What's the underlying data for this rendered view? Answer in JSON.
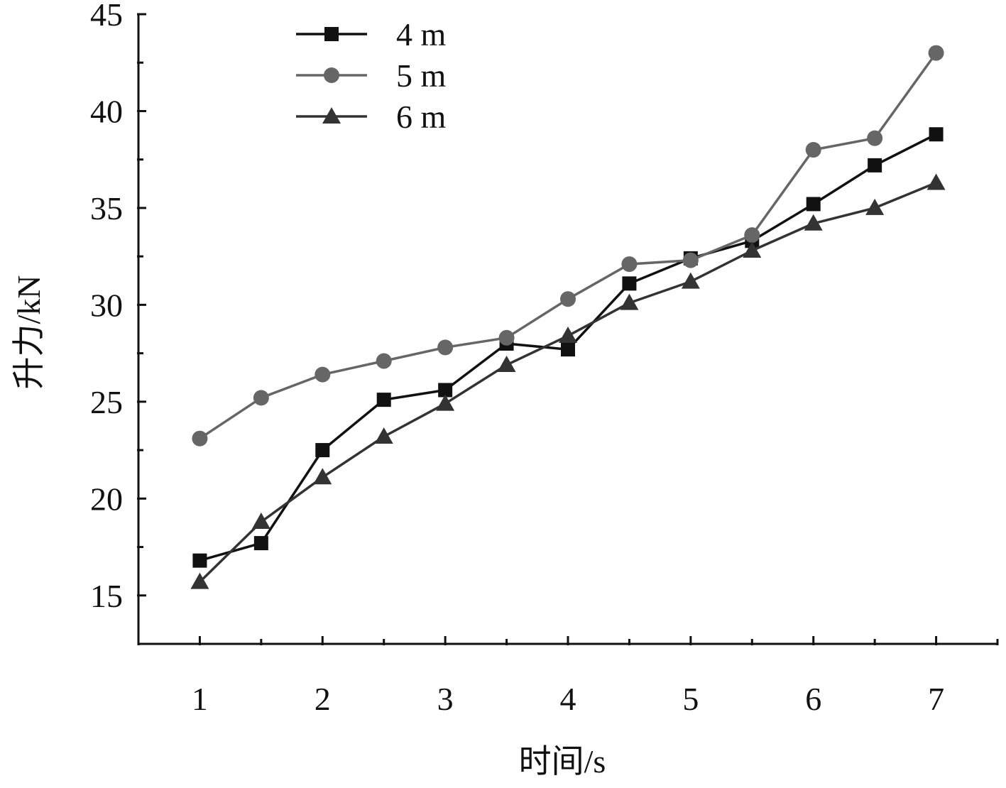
{
  "chart_data": {
    "type": "line",
    "title": "",
    "xlabel": "时间/s",
    "ylabel": "升力/kN",
    "xlim": [
      0.5,
      7.5
    ],
    "ylim": [
      12.5,
      45
    ],
    "x_ticks": [
      1,
      2,
      3,
      4,
      5,
      6,
      7
    ],
    "y_ticks": [
      15,
      20,
      25,
      30,
      35,
      40,
      45
    ],
    "x": [
      1,
      1.5,
      2,
      2.5,
      3,
      3.5,
      4,
      4.5,
      5,
      5.5,
      6,
      6.5,
      7
    ],
    "grid": false,
    "legend_position": "top-left",
    "series": [
      {
        "name": "4 m",
        "marker": "square",
        "color": "#111111",
        "values": [
          16.8,
          17.7,
          22.5,
          25.1,
          25.6,
          28.0,
          27.7,
          31.1,
          32.4,
          33.3,
          35.2,
          37.2,
          38.8
        ]
      },
      {
        "name": "5 m",
        "marker": "circle",
        "color": "#666666",
        "values": [
          23.1,
          25.2,
          26.4,
          27.1,
          27.8,
          28.3,
          30.3,
          32.1,
          32.3,
          33.6,
          38.0,
          38.6,
          43.0
        ]
      },
      {
        "name": "6 m",
        "marker": "triangle",
        "color": "#333333",
        "values": [
          15.7,
          18.8,
          21.1,
          23.2,
          24.9,
          26.9,
          28.4,
          30.1,
          31.2,
          32.8,
          34.2,
          35.0,
          36.3
        ]
      }
    ]
  }
}
